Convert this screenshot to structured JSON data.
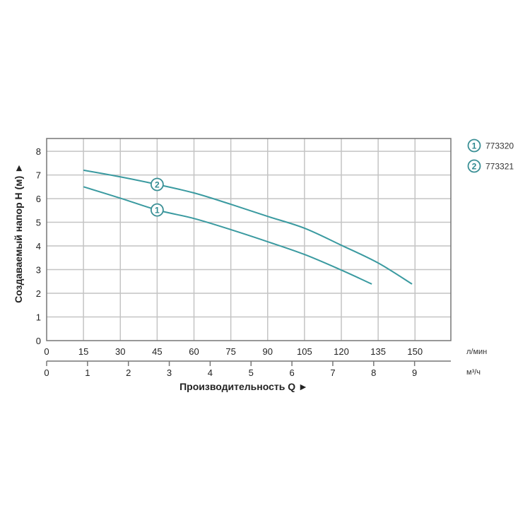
{
  "chart_data": {
    "type": "line",
    "title": "",
    "ylabel": "Создаваемый напор H (м) ►",
    "xlabel": "Производительность Q ►",
    "x_unit": "л/мин",
    "x2_unit": "м³/ч",
    "xlim": [
      0,
      164.6
    ],
    "ylim": [
      0,
      8.54
    ],
    "x_ticks": [
      "0",
      "15",
      "30",
      "45",
      "60",
      "75",
      "90",
      "105",
      "120",
      "135",
      "150"
    ],
    "x_tick_values": [
      0,
      15,
      30,
      45,
      60,
      75,
      90,
      105,
      120,
      135,
      150
    ],
    "x2_ticks": [
      "0",
      "1",
      "2",
      "3",
      "4",
      "5",
      "6",
      "7",
      "8",
      "9"
    ],
    "x2_tick_values": [
      0,
      1,
      2,
      3,
      4,
      5,
      6,
      7,
      8,
      9
    ],
    "y_ticks": [
      "0",
      "1",
      "2",
      "3",
      "4",
      "5",
      "6",
      "7",
      "8"
    ],
    "y_tick_values": [
      0,
      1,
      2,
      3,
      4,
      5,
      6,
      7,
      8
    ],
    "grid": true,
    "legend_position": "top-right",
    "color": "#3a9aa0",
    "series": [
      {
        "name": "773320",
        "marker": "1",
        "marker_x": 45,
        "x": [
          15,
          30,
          45,
          60,
          75,
          90,
          105,
          120,
          132.4
        ],
        "y": [
          6.5,
          6.02,
          5.52,
          5.16,
          4.69,
          4.18,
          3.64,
          2.98,
          2.39
        ]
      },
      {
        "name": "773321",
        "marker": "2",
        "marker_x": 45,
        "x": [
          15,
          30,
          45,
          60,
          75,
          90,
          105,
          120,
          135,
          148.8
        ],
        "y": [
          7.2,
          6.92,
          6.6,
          6.24,
          5.76,
          5.25,
          4.75,
          4.03,
          3.28,
          2.39
        ]
      }
    ]
  }
}
